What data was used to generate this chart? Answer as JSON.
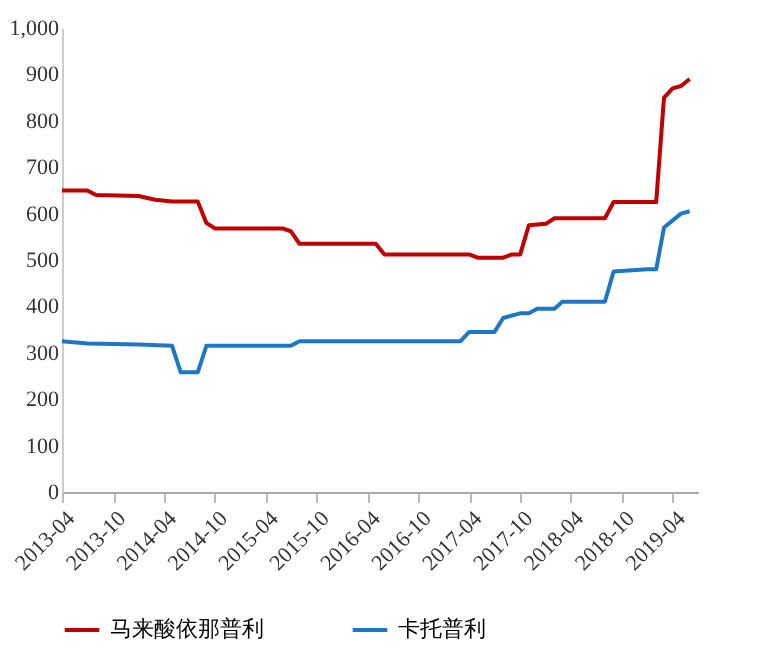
{
  "chart_data": {
    "type": "line",
    "legend": "bottom",
    "grid": false,
    "xlim": [
      "2013-04",
      "2019-07"
    ],
    "ylim": [
      0,
      1000
    ],
    "xticks": [
      "2013-04",
      "2013-10",
      "2014-04",
      "2014-10",
      "2015-04",
      "2015-10",
      "2016-04",
      "2016-10",
      "2017-04",
      "2017-10",
      "2018-04",
      "2018-10",
      "2019-04"
    ],
    "yticks": [
      0,
      100,
      200,
      300,
      400,
      500,
      600,
      700,
      800,
      900,
      {
        "value": 1000,
        "label": "1,000"
      }
    ],
    "series": [
      {
        "name": "马来酸依那普利",
        "color": "#c00000",
        "x": [
          "2013-04",
          "2013-07",
          "2013-08",
          "2014-01",
          "2014-03",
          "2014-05",
          "2014-08",
          "2014-09",
          "2014-10",
          "2015-06",
          "2015-07",
          "2015-08",
          "2016-05",
          "2016-06",
          "2017-04",
          "2017-05",
          "2017-08",
          "2017-09",
          "2017-10",
          "2017-11",
          "2018-01",
          "2018-02",
          "2018-08",
          "2018-09",
          "2019-02",
          "2019-03",
          "2019-04",
          "2019-05",
          "2019-06"
        ],
        "values": [
          650,
          650,
          640,
          638,
          630,
          626,
          626,
          580,
          568,
          568,
          562,
          535,
          535,
          512,
          512,
          505,
          505,
          512,
          512,
          575,
          578,
          590,
          590,
          625,
          625,
          850,
          870,
          875,
          890
        ]
      },
      {
        "name": "卡托普利",
        "color": "#1f77c4",
        "x": [
          "2013-04",
          "2013-07",
          "2014-01",
          "2014-05",
          "2014-06",
          "2014-08",
          "2014-09",
          "2015-07",
          "2015-08",
          "2017-03",
          "2017-04",
          "2017-07",
          "2017-08",
          "2017-10",
          "2017-11",
          "2017-12",
          "2018-02",
          "2018-03",
          "2018-08",
          "2018-09",
          "2019-01",
          "2019-02",
          "2019-03",
          "2019-05",
          "2019-06"
        ],
        "values": [
          325,
          320,
          318,
          315,
          258,
          258,
          315,
          315,
          325,
          325,
          345,
          345,
          375,
          385,
          385,
          395,
          395,
          410,
          410,
          475,
          480,
          480,
          570,
          600,
          605
        ]
      }
    ]
  }
}
